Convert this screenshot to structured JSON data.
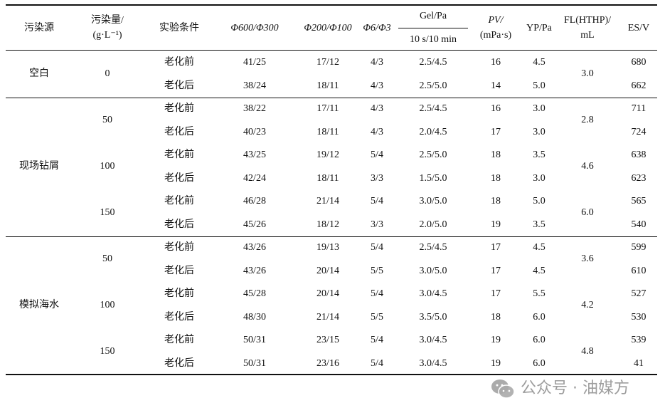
{
  "header": {
    "source": "污染源",
    "amount_l1": "污染量/",
    "amount_l2": "(g·L⁻¹)",
    "condition": "实验条件",
    "phi600": "Φ600/Φ300",
    "phi200": "Φ200/Φ100",
    "phi6": "Φ6/Φ3",
    "gel_top": "Gel/Pa",
    "gel_bottom": "10 s/10 min",
    "pv_l1": "PV/",
    "pv_l2": "(mPa·s)",
    "yp": "YP/Pa",
    "fl_l1": "FL(HTHP)/",
    "fl_l2": "mL",
    "es": "ES/V"
  },
  "groups": [
    {
      "source": "空白",
      "levels": [
        {
          "amount": "0",
          "fl": "3.0",
          "rows": [
            {
              "cond": "老化前",
              "p600": "41/25",
              "p200": "17/12",
              "p6": "4/3",
              "gel": "2.5/4.5",
              "pv": "16",
              "yp": "4.5",
              "es": "680"
            },
            {
              "cond": "老化后",
              "p600": "38/24",
              "p200": "18/11",
              "p6": "4/3",
              "gel": "2.5/5.0",
              "pv": "14",
              "yp": "5.0",
              "es": "662"
            }
          ]
        }
      ]
    },
    {
      "source": "现场钻屑",
      "levels": [
        {
          "amount": "50",
          "fl": "2.8",
          "rows": [
            {
              "cond": "老化前",
              "p600": "38/22",
              "p200": "17/11",
              "p6": "4/3",
              "gel": "2.5/4.5",
              "pv": "16",
              "yp": "3.0",
              "es": "711"
            },
            {
              "cond": "老化后",
              "p600": "40/23",
              "p200": "18/11",
              "p6": "4/3",
              "gel": "2.0/4.5",
              "pv": "17",
              "yp": "3.0",
              "es": "724"
            }
          ]
        },
        {
          "amount": "100",
          "fl": "4.6",
          "rows": [
            {
              "cond": "老化前",
              "p600": "43/25",
              "p200": "19/12",
              "p6": "5/4",
              "gel": "2.5/5.0",
              "pv": "18",
              "yp": "3.5",
              "es": "638"
            },
            {
              "cond": "老化后",
              "p600": "42/24",
              "p200": "18/11",
              "p6": "3/3",
              "gel": "1.5/5.0",
              "pv": "18",
              "yp": "3.0",
              "es": "623"
            }
          ]
        },
        {
          "amount": "150",
          "fl": "6.0",
          "rows": [
            {
              "cond": "老化前",
              "p600": "46/28",
              "p200": "21/14",
              "p6": "5/4",
              "gel": "3.0/5.0",
              "pv": "18",
              "yp": "5.0",
              "es": "565"
            },
            {
              "cond": "老化后",
              "p600": "45/26",
              "p200": "18/12",
              "p6": "3/3",
              "gel": "2.0/5.0",
              "pv": "19",
              "yp": "3.5",
              "es": "540"
            }
          ]
        }
      ]
    },
    {
      "source": "模拟海水",
      "levels": [
        {
          "amount": "50",
          "fl": "3.6",
          "rows": [
            {
              "cond": "老化前",
              "p600": "43/26",
              "p200": "19/13",
              "p6": "5/4",
              "gel": "2.5/4.5",
              "pv": "17",
              "yp": "4.5",
              "es": "599"
            },
            {
              "cond": "老化后",
              "p600": "43/26",
              "p200": "20/14",
              "p6": "5/5",
              "gel": "3.0/5.0",
              "pv": "17",
              "yp": "4.5",
              "es": "610"
            }
          ]
        },
        {
          "amount": "100",
          "fl": "4.2",
          "rows": [
            {
              "cond": "老化前",
              "p600": "45/28",
              "p200": "20/14",
              "p6": "5/4",
              "gel": "3.0/4.5",
              "pv": "17",
              "yp": "5.5",
              "es": "527"
            },
            {
              "cond": "老化后",
              "p600": "48/30",
              "p200": "21/14",
              "p6": "5/5",
              "gel": "3.5/5.0",
              "pv": "18",
              "yp": "6.0",
              "es": "530"
            }
          ]
        },
        {
          "amount": "150",
          "fl": "4.8",
          "rows": [
            {
              "cond": "老化前",
              "p600": "50/31",
              "p200": "23/15",
              "p6": "5/4",
              "gel": "3.0/4.5",
              "pv": "19",
              "yp": "6.0",
              "es": "539"
            },
            {
              "cond": "老化后",
              "p600": "50/31",
              "p200": "23/16",
              "p6": "5/4",
              "gel": "3.0/4.5",
              "pv": "19",
              "yp": "6.0",
              "es": "41"
            }
          ]
        }
      ]
    }
  ],
  "watermark": {
    "text": "公众号 · 油媒方",
    "icon": "wechat-icon"
  }
}
